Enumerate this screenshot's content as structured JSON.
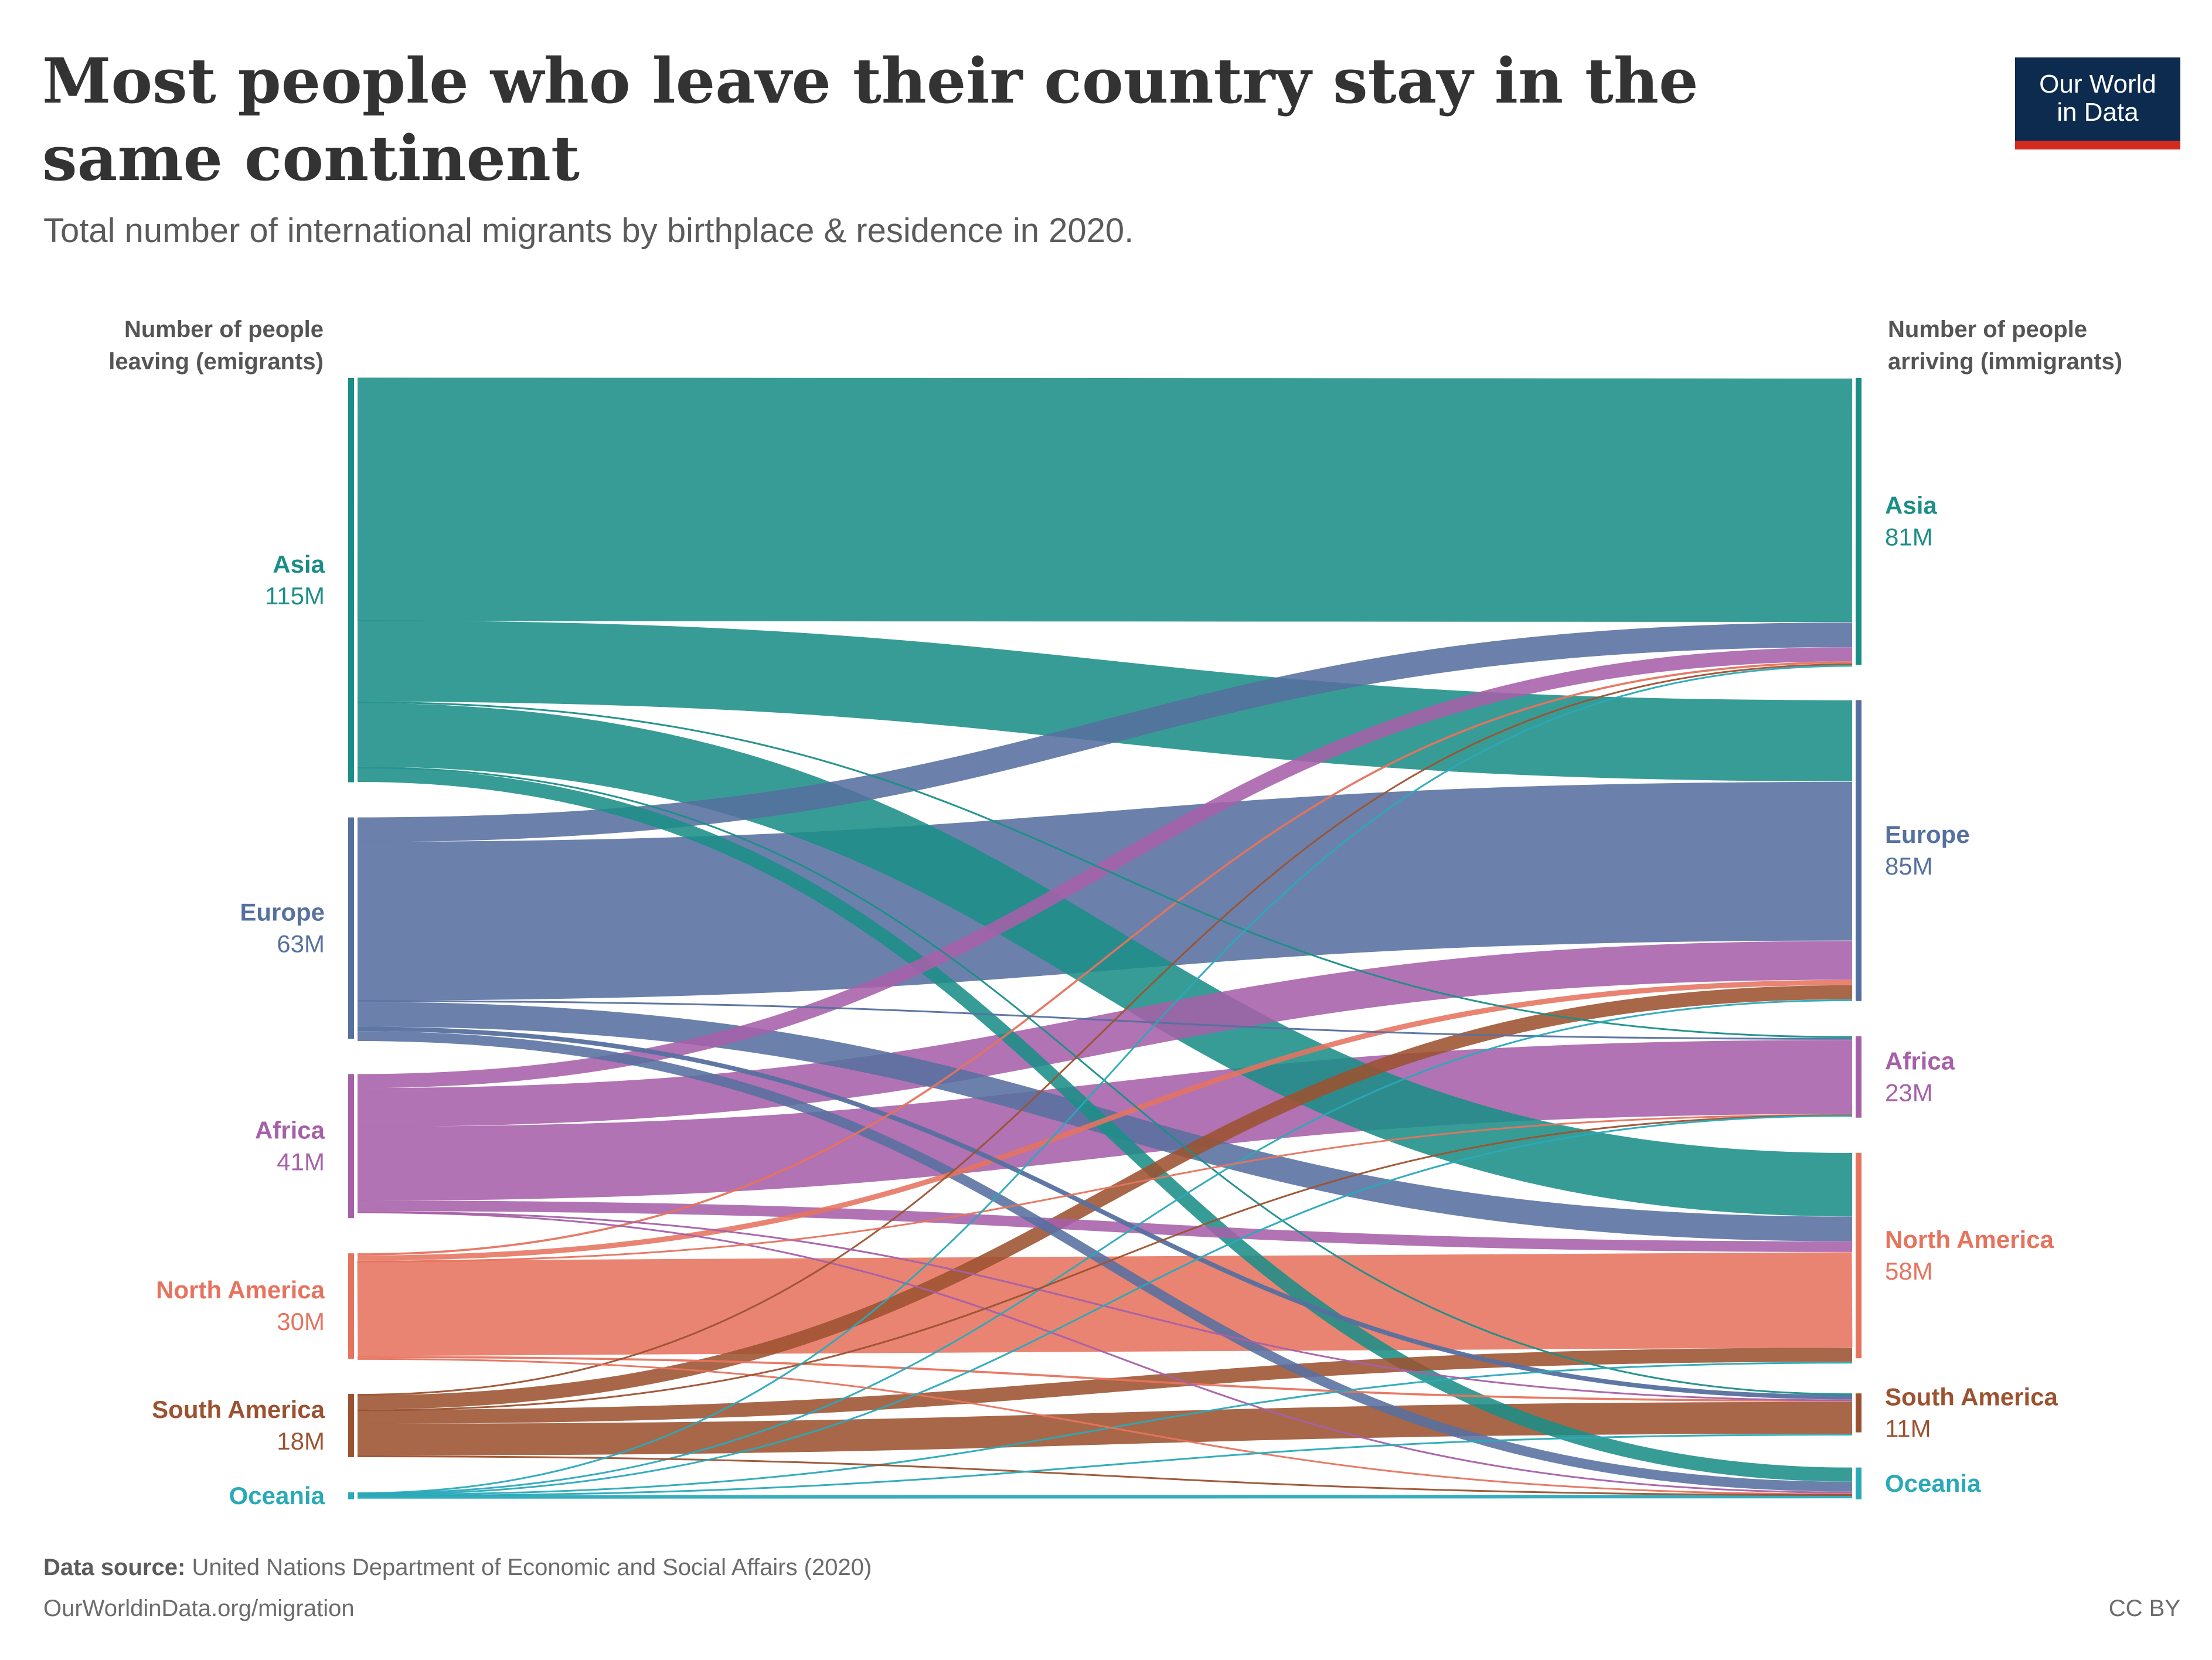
{
  "header": {
    "title": "Most people who leave their country stay in the same continent",
    "subtitle": "Total number of international migrants by birthplace & residence in 2020."
  },
  "logo": {
    "line1": "Our World",
    "line2": "in Data"
  },
  "left_axis_title": {
    "line1": "Number of people",
    "line2": "leaving (emigrants)"
  },
  "right_axis_title": {
    "line1": "Number of people",
    "line2": "arriving (immigrants)"
  },
  "chart_data": {
    "type": "sankey",
    "unit": "million people",
    "colors": {
      "Asia": "#1b8e87",
      "Europe": "#56709f",
      "Africa": "#a660a8",
      "North America": "#e6735e",
      "South America": "#9c5230",
      "Oceania": "#2aa9b8"
    },
    "sources": [
      {
        "name": "Asia",
        "label": "115M",
        "value": 115
      },
      {
        "name": "Europe",
        "label": "63M",
        "value": 63
      },
      {
        "name": "Africa",
        "label": "41M",
        "value": 41
      },
      {
        "name": "North America",
        "label": "30M",
        "value": 30
      },
      {
        "name": "South America",
        "label": "18M",
        "value": 18
      },
      {
        "name": "Oceania",
        "label": "",
        "value": 2
      }
    ],
    "targets": [
      {
        "name": "Asia",
        "label": "81M",
        "value": 81
      },
      {
        "name": "Europe",
        "label": "85M",
        "value": 85
      },
      {
        "name": "Africa",
        "label": "23M",
        "value": 23
      },
      {
        "name": "North America",
        "label": "58M",
        "value": 58
      },
      {
        "name": "South America",
        "label": "11M",
        "value": 11
      },
      {
        "name": "Oceania",
        "label": "",
        "value": 9
      }
    ],
    "flows": [
      {
        "from": "Asia",
        "to": "Asia",
        "value": 69
      },
      {
        "from": "Asia",
        "to": "Europe",
        "value": 23
      },
      {
        "from": "Asia",
        "to": "Africa",
        "value": 0.5
      },
      {
        "from": "Asia",
        "to": "North America",
        "value": 18
      },
      {
        "from": "Asia",
        "to": "South America",
        "value": 0.4
      },
      {
        "from": "Asia",
        "to": "Oceania",
        "value": 4
      },
      {
        "from": "Europe",
        "to": "Asia",
        "value": 7
      },
      {
        "from": "Europe",
        "to": "Europe",
        "value": 45
      },
      {
        "from": "Europe",
        "to": "Africa",
        "value": 0.5
      },
      {
        "from": "Europe",
        "to": "North America",
        "value": 7
      },
      {
        "from": "Europe",
        "to": "South America",
        "value": 1.3
      },
      {
        "from": "Europe",
        "to": "Oceania",
        "value": 2.8
      },
      {
        "from": "Africa",
        "to": "Asia",
        "value": 4
      },
      {
        "from": "Africa",
        "to": "Europe",
        "value": 11
      },
      {
        "from": "Africa",
        "to": "Africa",
        "value": 21
      },
      {
        "from": "Africa",
        "to": "North America",
        "value": 3
      },
      {
        "from": "Africa",
        "to": "South America",
        "value": 0.1
      },
      {
        "from": "Africa",
        "to": "Oceania",
        "value": 0.5
      },
      {
        "from": "North America",
        "to": "Asia",
        "value": 0.6
      },
      {
        "from": "North America",
        "to": "Europe",
        "value": 1.5
      },
      {
        "from": "North America",
        "to": "Africa",
        "value": 0.1
      },
      {
        "from": "North America",
        "to": "North America",
        "value": 27
      },
      {
        "from": "North America",
        "to": "South America",
        "value": 0.6
      },
      {
        "from": "North America",
        "to": "Oceania",
        "value": 0.2
      },
      {
        "from": "South America",
        "to": "Asia",
        "value": 0.4
      },
      {
        "from": "South America",
        "to": "Europe",
        "value": 4
      },
      {
        "from": "South America",
        "to": "Africa",
        "value": 0.1
      },
      {
        "from": "South America",
        "to": "North America",
        "value": 4
      },
      {
        "from": "South America",
        "to": "South America",
        "value": 9
      },
      {
        "from": "South America",
        "to": "Oceania",
        "value": 0.2
      },
      {
        "from": "Oceania",
        "to": "Asia",
        "value": 0.1
      },
      {
        "from": "Oceania",
        "to": "Europe",
        "value": 0.3
      },
      {
        "from": "Oceania",
        "to": "Africa",
        "value": 0.05
      },
      {
        "from": "Oceania",
        "to": "North America",
        "value": 0.3
      },
      {
        "from": "Oceania",
        "to": "South America",
        "value": 0.05
      },
      {
        "from": "Oceania",
        "to": "Oceania",
        "value": 1
      }
    ]
  },
  "footer": {
    "source_label": "Data source:",
    "source_text": "United Nations Department of Economic and Social Affairs (2020)",
    "url": "OurWorldinData.org/migration",
    "license": "CC BY"
  }
}
